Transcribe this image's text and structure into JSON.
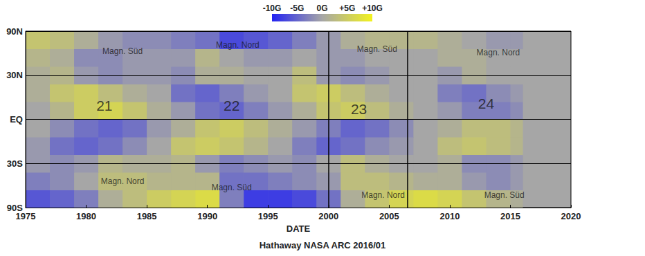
{
  "chart_data": {
    "type": "heatmap",
    "title": "Hathaway NASA ARC 2016/01",
    "x_label": "DATE",
    "xlim": [
      1975,
      2020
    ],
    "xticks": [
      1975,
      1980,
      1985,
      1990,
      1995,
      2000,
      2005,
      2010,
      2015,
      2020
    ],
    "ylim": [
      -1,
      1
    ],
    "yticks": [
      {
        "value": -1,
        "label": "90S"
      },
      {
        "value": -0.5,
        "label": "30S"
      },
      {
        "value": 0,
        "label": "EQ"
      },
      {
        "value": 0.5,
        "label": "30N"
      },
      {
        "value": 1,
        "label": "90N"
      }
    ],
    "grid": true,
    "x_bins": [
      1975,
      1977,
      1979,
      1981,
      1983,
      1985,
      1987,
      1989,
      1991,
      1993,
      1995,
      1997,
      1999,
      2001,
      2003,
      2005,
      2007,
      2009,
      2011,
      2013,
      2015,
      2016
    ],
    "y_bins": [
      -1,
      -0.8,
      -0.6,
      -0.4,
      -0.2,
      0,
      0.2,
      0.4,
      0.6,
      0.8,
      1
    ],
    "cells": [
      [
        -6,
        -5,
        -3,
        1,
        3,
        5,
        6,
        7,
        -3,
        -8,
        -8,
        -7,
        -4,
        1,
        4,
        6,
        7,
        6,
        4,
        2,
        1
      ],
      [
        -3,
        -2,
        0,
        3,
        3,
        2,
        2,
        2,
        -4,
        -4,
        -3,
        -2,
        -1,
        3,
        3,
        2,
        1,
        1,
        -1,
        -2,
        -1
      ],
      [
        -1,
        -2,
        -1,
        2,
        1,
        1,
        2,
        -1,
        -3,
        -2,
        -1,
        -2,
        0,
        3,
        1,
        0,
        0,
        1,
        -2,
        -2,
        -1
      ],
      [
        -1,
        -4,
        -5,
        -4,
        -2,
        0,
        4,
        5,
        4,
        2,
        0,
        -3,
        -5,
        -4,
        -2,
        -1,
        0,
        3,
        4,
        3,
        2
      ],
      [
        0,
        -2,
        -4,
        -5,
        -4,
        -1,
        1,
        4,
        5,
        3,
        1,
        -1,
        -3,
        -5,
        -4,
        -2,
        0,
        1,
        3,
        3,
        2
      ],
      [
        0,
        2,
        5,
        6,
        4,
        1,
        -1,
        -4,
        -5,
        -3,
        -1,
        1,
        4,
        5,
        3,
        1,
        0,
        -1,
        -3,
        -3,
        -2
      ],
      [
        1,
        4,
        5,
        3,
        1,
        0,
        -4,
        -5,
        -3,
        -1,
        0,
        4,
        5,
        3,
        1,
        0,
        0,
        -3,
        -4,
        -2,
        -1
      ],
      [
        1,
        2,
        -1,
        -2,
        -1,
        -1,
        -2,
        1,
        1,
        0,
        0,
        3,
        -1,
        -2,
        -1,
        0,
        0,
        -1,
        1,
        0,
        0
      ],
      [
        2,
        1,
        -2,
        -2,
        -1,
        -1,
        -1,
        2,
        0,
        -1,
        -1,
        0,
        -1,
        -1,
        0,
        0,
        0,
        1,
        1,
        0,
        0
      ],
      [
        4,
        3,
        1,
        -1,
        -2,
        -2,
        -3,
        -4,
        -7,
        -6,
        -5,
        -3,
        -1,
        1,
        2,
        2,
        2,
        1,
        0,
        -1,
        -1
      ]
    ],
    "colorbar": {
      "range": [
        -10,
        10
      ],
      "ticks": [
        {
          "value": -10,
          "label": "-10G"
        },
        {
          "value": -5,
          "label": "-5G"
        },
        {
          "value": 0,
          "label": "0G"
        },
        {
          "value": 5,
          "label": "+5G"
        },
        {
          "value": 10,
          "label": "+10G"
        }
      ],
      "colors": [
        "#2323f2",
        "#a6a6a6",
        "#f2f21e"
      ]
    },
    "vlines": [
      2000,
      2006.5
    ],
    "annotations": [
      {
        "text": "21",
        "x": 1981.5,
        "y": 0.16
      },
      {
        "text": "22",
        "x": 1992,
        "y": 0.16
      },
      {
        "text": "23",
        "x": 2002.5,
        "y": 0.12
      },
      {
        "text": "24",
        "x": 2013,
        "y": 0.18
      },
      {
        "text": "Magn. Süd",
        "x": 1983,
        "y": 0.77
      },
      {
        "text": "Magn. Nord",
        "x": 1992.5,
        "y": 0.84
      },
      {
        "text": "Magn. Süd",
        "x": 2004,
        "y": 0.8
      },
      {
        "text": "Magn. Nord",
        "x": 2014,
        "y": 0.76
      },
      {
        "text": "Magn. Nord",
        "x": 1983,
        "y": -0.7
      },
      {
        "text": "Magn. Süd",
        "x": 1992,
        "y": -0.77
      },
      {
        "text": "Magn. Nord",
        "x": 2004.5,
        "y": -0.86
      },
      {
        "text": "Magn. Süd",
        "x": 2014.5,
        "y": -0.86
      }
    ]
  }
}
